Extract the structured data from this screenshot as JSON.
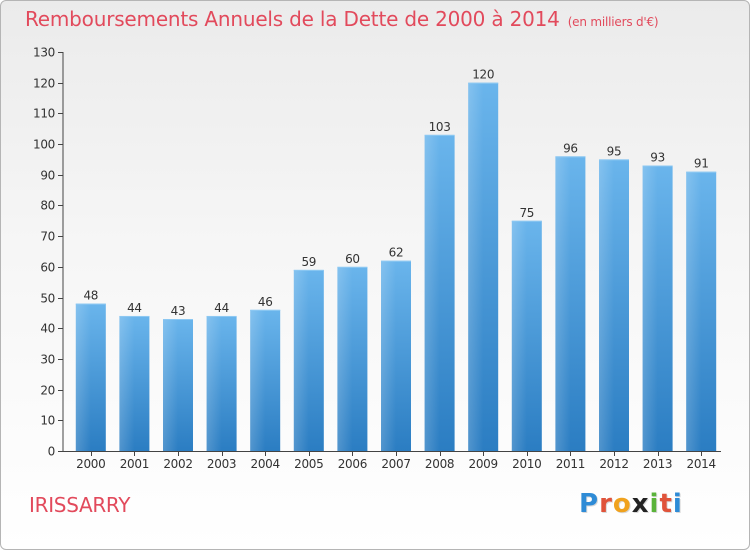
{
  "title": "Remboursements Annuels de la Dette de 2000 à 2014",
  "unit_note": "(en milliers d'€)",
  "commune": "IRISSARRY",
  "logo": {
    "letters": [
      "P",
      "r",
      "o",
      "x",
      "i",
      "t",
      "i"
    ],
    "colors": [
      "#2e8bd6",
      "#e0533a",
      "#f0a21e",
      "#222222",
      "#5ab33a",
      "#e0533a",
      "#2e8bd6"
    ]
  },
  "colors": {
    "title": "#e24a5c",
    "commune": "#e24a5c",
    "bar_top": "#6ab5ec",
    "bar_bottom": "#2b7dc2"
  },
  "chart_data": {
    "type": "bar",
    "title": "Remboursements Annuels de la Dette de 2000 à 2014",
    "categories": [
      "2000",
      "2001",
      "2002",
      "2003",
      "2004",
      "2005",
      "2006",
      "2007",
      "2008",
      "2009",
      "2010",
      "2011",
      "2012",
      "2013",
      "2014"
    ],
    "values": [
      48,
      44,
      43,
      44,
      46,
      59,
      60,
      62,
      103,
      120,
      75,
      96,
      95,
      93,
      91
    ],
    "ylim": [
      0,
      130
    ],
    "yticks": [
      0,
      10,
      20,
      30,
      40,
      50,
      60,
      70,
      80,
      90,
      100,
      110,
      120,
      130
    ],
    "grid": false,
    "data_labels": true
  }
}
